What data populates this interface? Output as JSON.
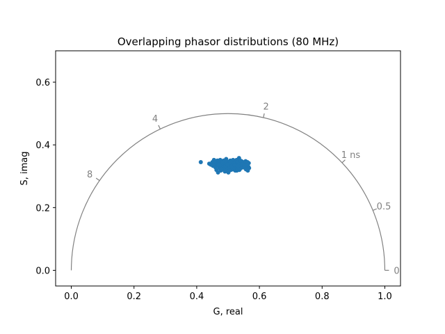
{
  "chart_data": {
    "type": "scatter",
    "title": "Overlapping phasor distributions (80 MHz)",
    "xlabel": "G, real",
    "ylabel": "S, imag",
    "xlim": [
      -0.05,
      1.05
    ],
    "ylim": [
      -0.05,
      0.7
    ],
    "xticks": [
      0.0,
      0.2,
      0.4,
      0.6,
      0.8,
      1.0
    ],
    "xtick_labels": [
      "0.0",
      "0.2",
      "0.4",
      "0.6",
      "0.8",
      "1.0"
    ],
    "yticks": [
      0.0,
      0.2,
      0.4,
      0.6
    ],
    "ytick_labels": [
      "0.0",
      "0.2",
      "0.4",
      "0.6"
    ],
    "grid": false,
    "point_color": "#1f77b4",
    "universal_circle": {
      "color": "#808080",
      "lifetime_labels": [
        {
          "text": "0",
          "g": 1.0,
          "s": 0.0
        },
        {
          "text": "0.5",
          "g": 0.962,
          "s": 0.1912
        },
        {
          "text": "1 ns",
          "g": 0.8638,
          "s": 0.3431
        },
        {
          "text": "2",
          "g": 0.6126,
          "s": 0.4872
        },
        {
          "text": "4",
          "g": 0.2836,
          "s": 0.4507
        },
        {
          "text": "8",
          "g": 0.09,
          "s": 0.2862
        }
      ]
    },
    "points": [
      [
        0.413,
        0.345
      ],
      [
        0.44,
        0.34
      ],
      [
        0.445,
        0.337
      ],
      [
        0.45,
        0.345
      ],
      [
        0.452,
        0.333
      ],
      [
        0.455,
        0.352
      ],
      [
        0.458,
        0.34
      ],
      [
        0.46,
        0.328
      ],
      [
        0.462,
        0.345
      ],
      [
        0.463,
        0.32
      ],
      [
        0.465,
        0.338
      ],
      [
        0.466,
        0.35
      ],
      [
        0.468,
        0.312
      ],
      [
        0.47,
        0.332
      ],
      [
        0.471,
        0.343
      ],
      [
        0.473,
        0.325
      ],
      [
        0.474,
        0.349
      ],
      [
        0.476,
        0.338
      ],
      [
        0.477,
        0.318
      ],
      [
        0.478,
        0.33
      ],
      [
        0.48,
        0.345
      ],
      [
        0.481,
        0.336
      ],
      [
        0.482,
        0.322
      ],
      [
        0.484,
        0.341
      ],
      [
        0.485,
        0.33
      ],
      [
        0.486,
        0.35
      ],
      [
        0.488,
        0.325
      ],
      [
        0.489,
        0.338
      ],
      [
        0.49,
        0.315
      ],
      [
        0.491,
        0.343
      ],
      [
        0.492,
        0.332
      ],
      [
        0.494,
        0.355
      ],
      [
        0.495,
        0.327
      ],
      [
        0.496,
        0.34
      ],
      [
        0.497,
        0.32
      ],
      [
        0.498,
        0.346
      ],
      [
        0.5,
        0.333
      ],
      [
        0.501,
        0.312
      ],
      [
        0.502,
        0.338
      ],
      [
        0.503,
        0.325
      ],
      [
        0.505,
        0.343
      ],
      [
        0.506,
        0.33
      ],
      [
        0.507,
        0.35
      ],
      [
        0.509,
        0.32
      ],
      [
        0.51,
        0.34
      ],
      [
        0.511,
        0.328
      ],
      [
        0.513,
        0.345
      ],
      [
        0.514,
        0.335
      ],
      [
        0.515,
        0.322
      ],
      [
        0.517,
        0.34
      ],
      [
        0.518,
        0.33
      ],
      [
        0.519,
        0.348
      ],
      [
        0.521,
        0.325
      ],
      [
        0.522,
        0.338
      ],
      [
        0.523,
        0.318
      ],
      [
        0.525,
        0.342
      ],
      [
        0.526,
        0.332
      ],
      [
        0.527,
        0.352
      ],
      [
        0.529,
        0.328
      ],
      [
        0.53,
        0.34
      ],
      [
        0.531,
        0.322
      ],
      [
        0.533,
        0.346
      ],
      [
        0.534,
        0.335
      ],
      [
        0.535,
        0.358
      ],
      [
        0.537,
        0.33
      ],
      [
        0.538,
        0.342
      ],
      [
        0.54,
        0.325
      ],
      [
        0.541,
        0.338
      ],
      [
        0.543,
        0.348
      ],
      [
        0.544,
        0.332
      ],
      [
        0.546,
        0.343
      ],
      [
        0.548,
        0.328
      ],
      [
        0.549,
        0.337
      ],
      [
        0.551,
        0.345
      ],
      [
        0.553,
        0.33
      ],
      [
        0.555,
        0.34
      ],
      [
        0.557,
        0.322
      ],
      [
        0.558,
        0.343
      ],
      [
        0.56,
        0.333
      ],
      [
        0.562,
        0.345
      ],
      [
        0.563,
        0.318
      ],
      [
        0.565,
        0.33
      ],
      [
        0.566,
        0.342
      ],
      [
        0.567,
        0.326
      ],
      [
        0.458,
        0.348
      ],
      [
        0.469,
        0.337
      ],
      [
        0.475,
        0.352
      ],
      [
        0.487,
        0.32
      ],
      [
        0.493,
        0.348
      ],
      [
        0.499,
        0.338
      ],
      [
        0.504,
        0.318
      ],
      [
        0.512,
        0.333
      ],
      [
        0.516,
        0.352
      ],
      [
        0.52,
        0.336
      ],
      [
        0.528,
        0.318
      ],
      [
        0.532,
        0.333
      ],
      [
        0.536,
        0.32
      ],
      [
        0.539,
        0.35
      ],
      [
        0.545,
        0.338
      ],
      [
        0.552,
        0.335
      ],
      [
        0.556,
        0.348
      ],
      [
        0.483,
        0.348
      ],
      [
        0.479,
        0.323
      ],
      [
        0.508,
        0.345
      ]
    ]
  }
}
